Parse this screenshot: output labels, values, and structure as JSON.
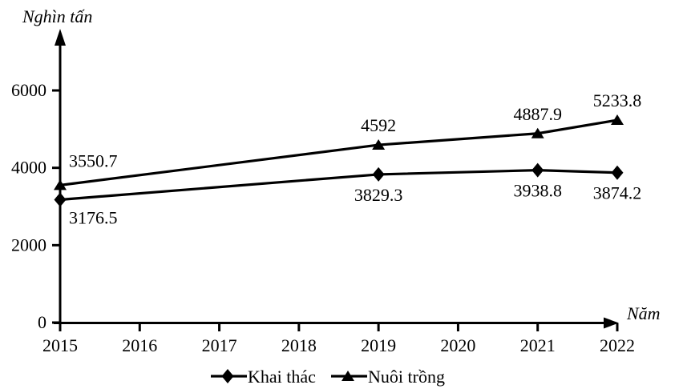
{
  "chart_data": {
    "type": "line",
    "title": "",
    "ylabel": "Nghìn tấn",
    "xlabel": "Năm",
    "x_tick_years": [
      "2015",
      "2016",
      "2017",
      "2018",
      "2019",
      "2020",
      "2021",
      "2022"
    ],
    "y_ticks": [
      0,
      2000,
      4000,
      6000
    ],
    "axis_ranges": {
      "x": [
        2015,
        2022
      ],
      "y": [
        0,
        6000
      ]
    },
    "grid": false,
    "legend_position": "bottom-center",
    "line_color": "#000000",
    "text_color": "#000000",
    "background_color": "#ffffff",
    "x": [
      2015,
      2019,
      2021,
      2022
    ],
    "series": [
      {
        "name": "Khai thác",
        "marker": "diamond",
        "label_position": "below",
        "values": [
          3176.5,
          3829.3,
          3938.8,
          3874.2
        ],
        "point_labels": [
          "3176.5",
          "3829.3",
          "3938.8",
          "3874.2"
        ]
      },
      {
        "name": "Nuôi trồng",
        "marker": "triangle",
        "label_position": "above",
        "values": [
          3550.7,
          4592,
          4887.9,
          5233.8
        ],
        "point_labels": [
          "3550.7",
          "4592",
          "4887.9",
          "5233.8"
        ]
      }
    ],
    "legend": [
      "Khai thác",
      "Nuôi trồng"
    ]
  }
}
